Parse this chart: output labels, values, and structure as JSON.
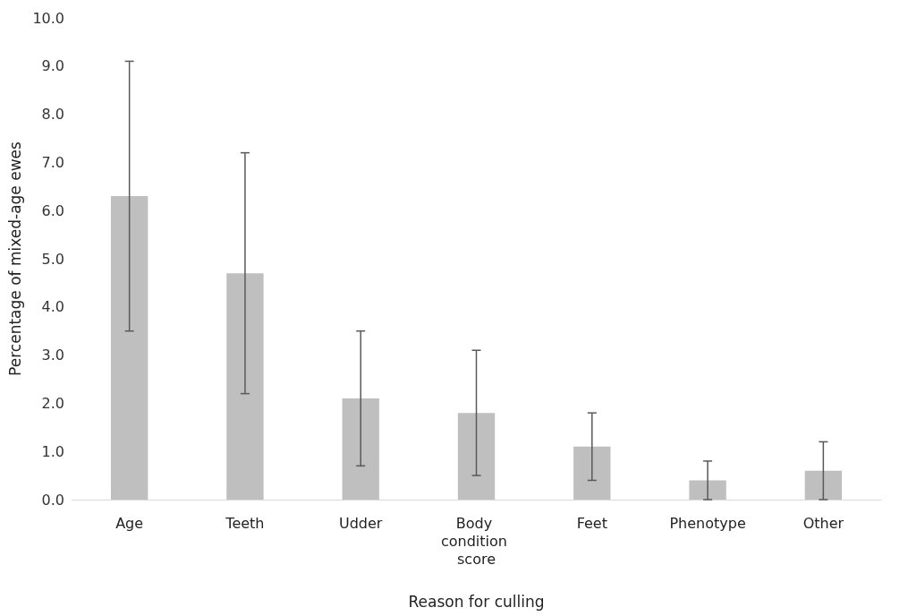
{
  "chart_data": {
    "type": "bar",
    "xlabel": "Reason for culling",
    "ylabel": "Percentage of mixed-age ewes",
    "categories": [
      "Age",
      "Teeth",
      "Udder",
      "Body condition score",
      "Feet",
      "Phenotype",
      "Other"
    ],
    "values": [
      6.3,
      4.7,
      2.1,
      1.8,
      1.1,
      0.4,
      0.6
    ],
    "errors": [
      [
        3.5,
        9.1
      ],
      [
        2.2,
        7.2
      ],
      [
        0.7,
        3.5
      ],
      [
        0.5,
        3.1
      ],
      [
        0.4,
        1.8
      ],
      [
        0.0,
        0.8
      ],
      [
        0.0,
        1.2
      ]
    ],
    "color": "#bfbfbf",
    "ylim": [
      0,
      10
    ],
    "yticks": [
      {
        "value": 0,
        "label": "0.0"
      },
      {
        "value": 1,
        "label": "1.0"
      },
      {
        "value": 2,
        "label": "2.0"
      },
      {
        "value": 3,
        "label": "3.0"
      },
      {
        "value": 4,
        "label": "4.0"
      },
      {
        "value": 5,
        "label": "5.0"
      },
      {
        "value": 6,
        "label": "6.0"
      },
      {
        "value": 7,
        "label": "7.0"
      },
      {
        "value": 8,
        "label": "8.0"
      },
      {
        "value": 9,
        "label": "9.0"
      },
      {
        "value": 10,
        "label": "10.0"
      }
    ],
    "grid": false
  }
}
